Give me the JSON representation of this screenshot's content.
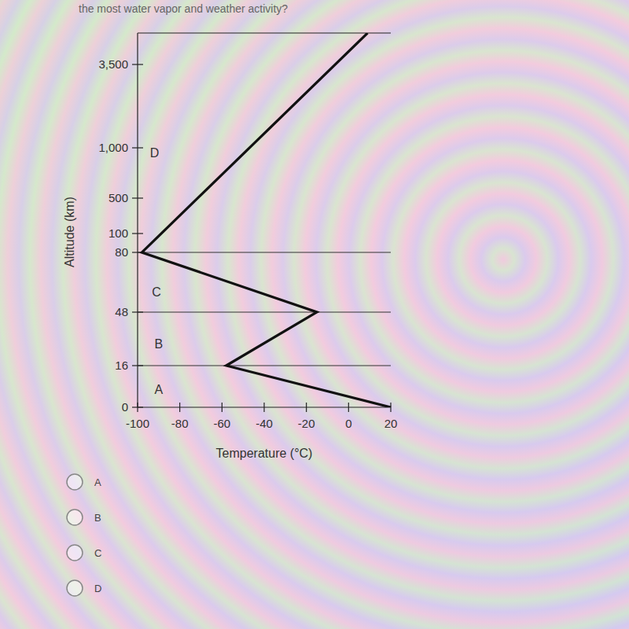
{
  "question": "the most water vapor and weather activity?",
  "chart_data": {
    "type": "line",
    "x_label": "Temperature (°C)",
    "y_label": "Altitude (km)",
    "x": [
      20,
      -58,
      -15,
      -98,
      9
    ],
    "values": [
      0,
      16,
      48,
      80,
      4500
    ],
    "color": "#111111",
    "xlim": [
      -100,
      20
    ],
    "xticks": [
      -100,
      -80,
      -60,
      -40,
      -20,
      0,
      20
    ],
    "ylim": [
      0,
      4500
    ],
    "yticks": [
      0,
      16,
      48,
      80,
      100,
      500,
      {
        "value": 1000,
        "label": "1,000"
      },
      {
        "value": 3500,
        "label": "3,500"
      }
    ],
    "boundaries": [
      16,
      48,
      80
    ],
    "annotations": [
      {
        "text": "A",
        "x": -90,
        "y": 7
      },
      {
        "text": "B",
        "x": -90,
        "y": 29
      },
      {
        "text": "C",
        "x": -91,
        "y": 59
      },
      {
        "text": "D",
        "x": -92,
        "y": 950
      }
    ]
  },
  "options": [
    "A",
    "B",
    "C",
    "D"
  ]
}
